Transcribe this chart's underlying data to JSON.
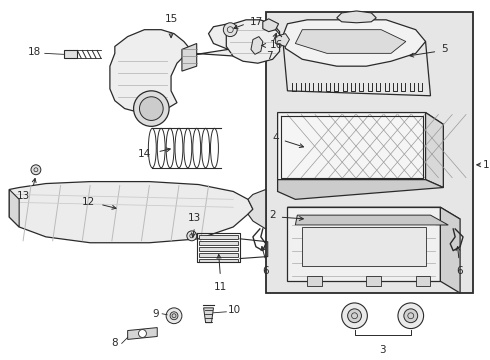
{
  "bg_color": "#ffffff",
  "line_color": "#2a2a2a",
  "box_bg": "#e6e6e6",
  "fig_width": 4.9,
  "fig_height": 3.6,
  "dpi": 100
}
